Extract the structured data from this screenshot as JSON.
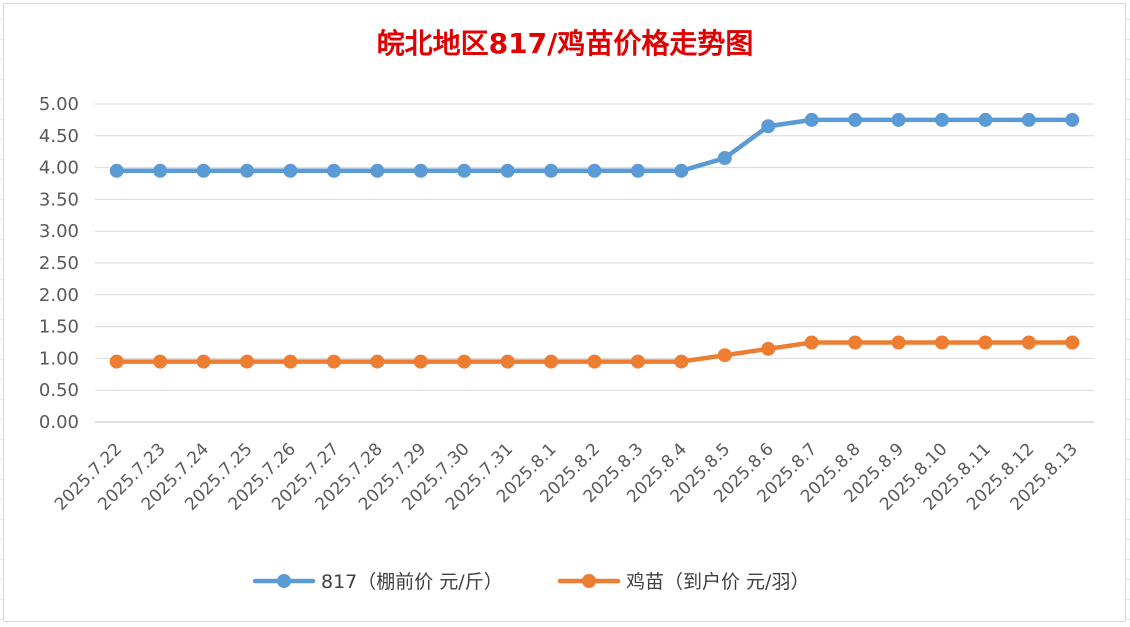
{
  "chart_data": {
    "type": "line",
    "title": "皖北地区817/鸡苗价格走势图",
    "xlabel": "",
    "ylabel": "",
    "ylim": [
      0,
      5
    ],
    "yticks": [
      "0.00",
      "0.50",
      "1.00",
      "1.50",
      "2.00",
      "2.50",
      "3.00",
      "3.50",
      "4.00",
      "4.50",
      "5.00"
    ],
    "grid": true,
    "legend_position": "bottom",
    "categories": [
      "2025.7.22",
      "2025.7.23",
      "2025.7.24",
      "2025.7.25",
      "2025.7.26",
      "2025.7.27",
      "2025.7.28",
      "2025.7.29",
      "2025.7.30",
      "2025.7.31",
      "2025.8.1",
      "2025.8.2",
      "2025.8.3",
      "2025.8.4",
      "2025.8.5",
      "2025.8.6",
      "2025.8.7",
      "2025.8.8",
      "2025.8.9",
      "2025.8.10",
      "2025.8.11",
      "2025.8.12",
      "2025.8.13"
    ],
    "series": [
      {
        "name": "817（棚前价 元/斤）",
        "color": "#5b9bd5",
        "values": [
          3.95,
          3.95,
          3.95,
          3.95,
          3.95,
          3.95,
          3.95,
          3.95,
          3.95,
          3.95,
          3.95,
          3.95,
          3.95,
          3.95,
          4.15,
          4.65,
          4.75,
          4.75,
          4.75,
          4.75,
          4.75,
          4.75,
          4.75
        ]
      },
      {
        "name": "鸡苗（到户价 元/羽）",
        "color": "#ed7d31",
        "values": [
          0.95,
          0.95,
          0.95,
          0.95,
          0.95,
          0.95,
          0.95,
          0.95,
          0.95,
          0.95,
          0.95,
          0.95,
          0.95,
          0.95,
          1.05,
          1.15,
          1.25,
          1.25,
          1.25,
          1.25,
          1.25,
          1.25,
          1.25
        ]
      }
    ]
  }
}
